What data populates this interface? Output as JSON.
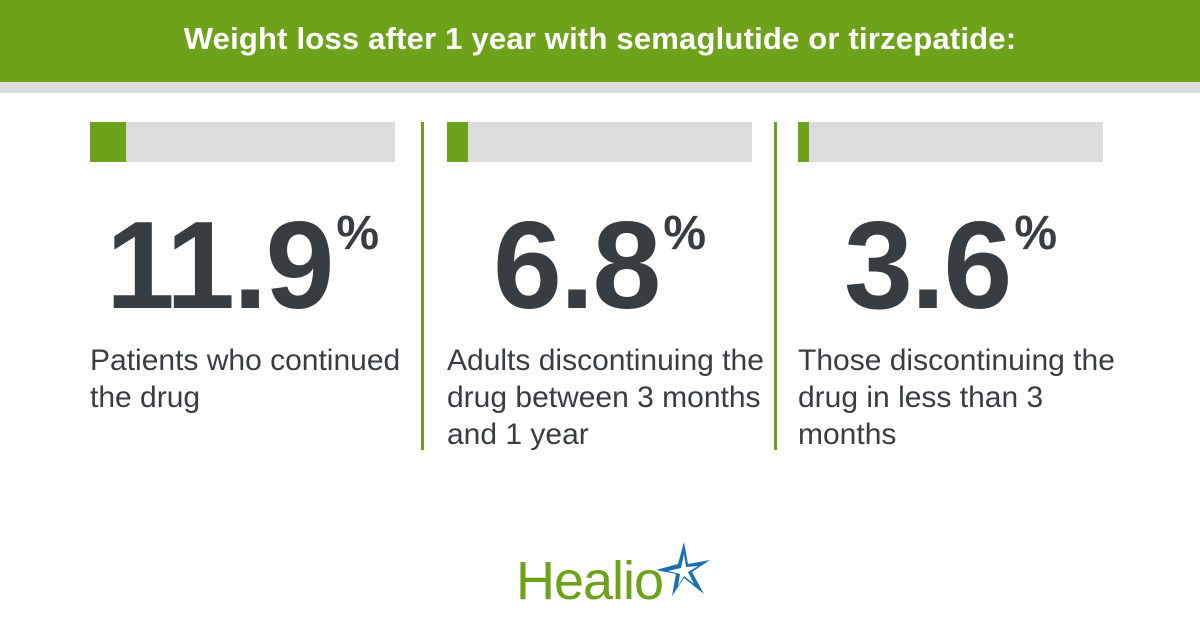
{
  "header": {
    "title": "Weight loss after 1 year with semaglutide or tirzepatide:"
  },
  "chart_data": {
    "type": "bar",
    "title": "Weight loss after 1 year with semaglutide or tirzepatide:",
    "unit": "%",
    "categories": [
      "Patients who continued the drug",
      "Adults discontinuing the drug between 3 months and 1 year",
      "Those discontinuing the drug in less than 3 months"
    ],
    "values": [
      11.9,
      6.8,
      3.6
    ],
    "display_values": [
      "11.9",
      "6.8",
      "3.6"
    ]
  },
  "stats": [
    {
      "value": "11.9",
      "unit": "%",
      "description": "Patients who continued the drug"
    },
    {
      "value": "6.8",
      "unit": "%",
      "description": "Adults discontinuing the drug between 3 months and 1 year"
    },
    {
      "value": "3.6",
      "unit": "%",
      "description": "Those discontinuing the drug in less than 3 months"
    }
  ],
  "logo": {
    "text": "Healio",
    "icon": "star-icon",
    "colors": {
      "green": "#6ea21a",
      "blue": "#1a6fb3"
    }
  },
  "colors": {
    "accent": "#6ea21a",
    "track": "#dcdcdc",
    "text": "#383d42"
  }
}
